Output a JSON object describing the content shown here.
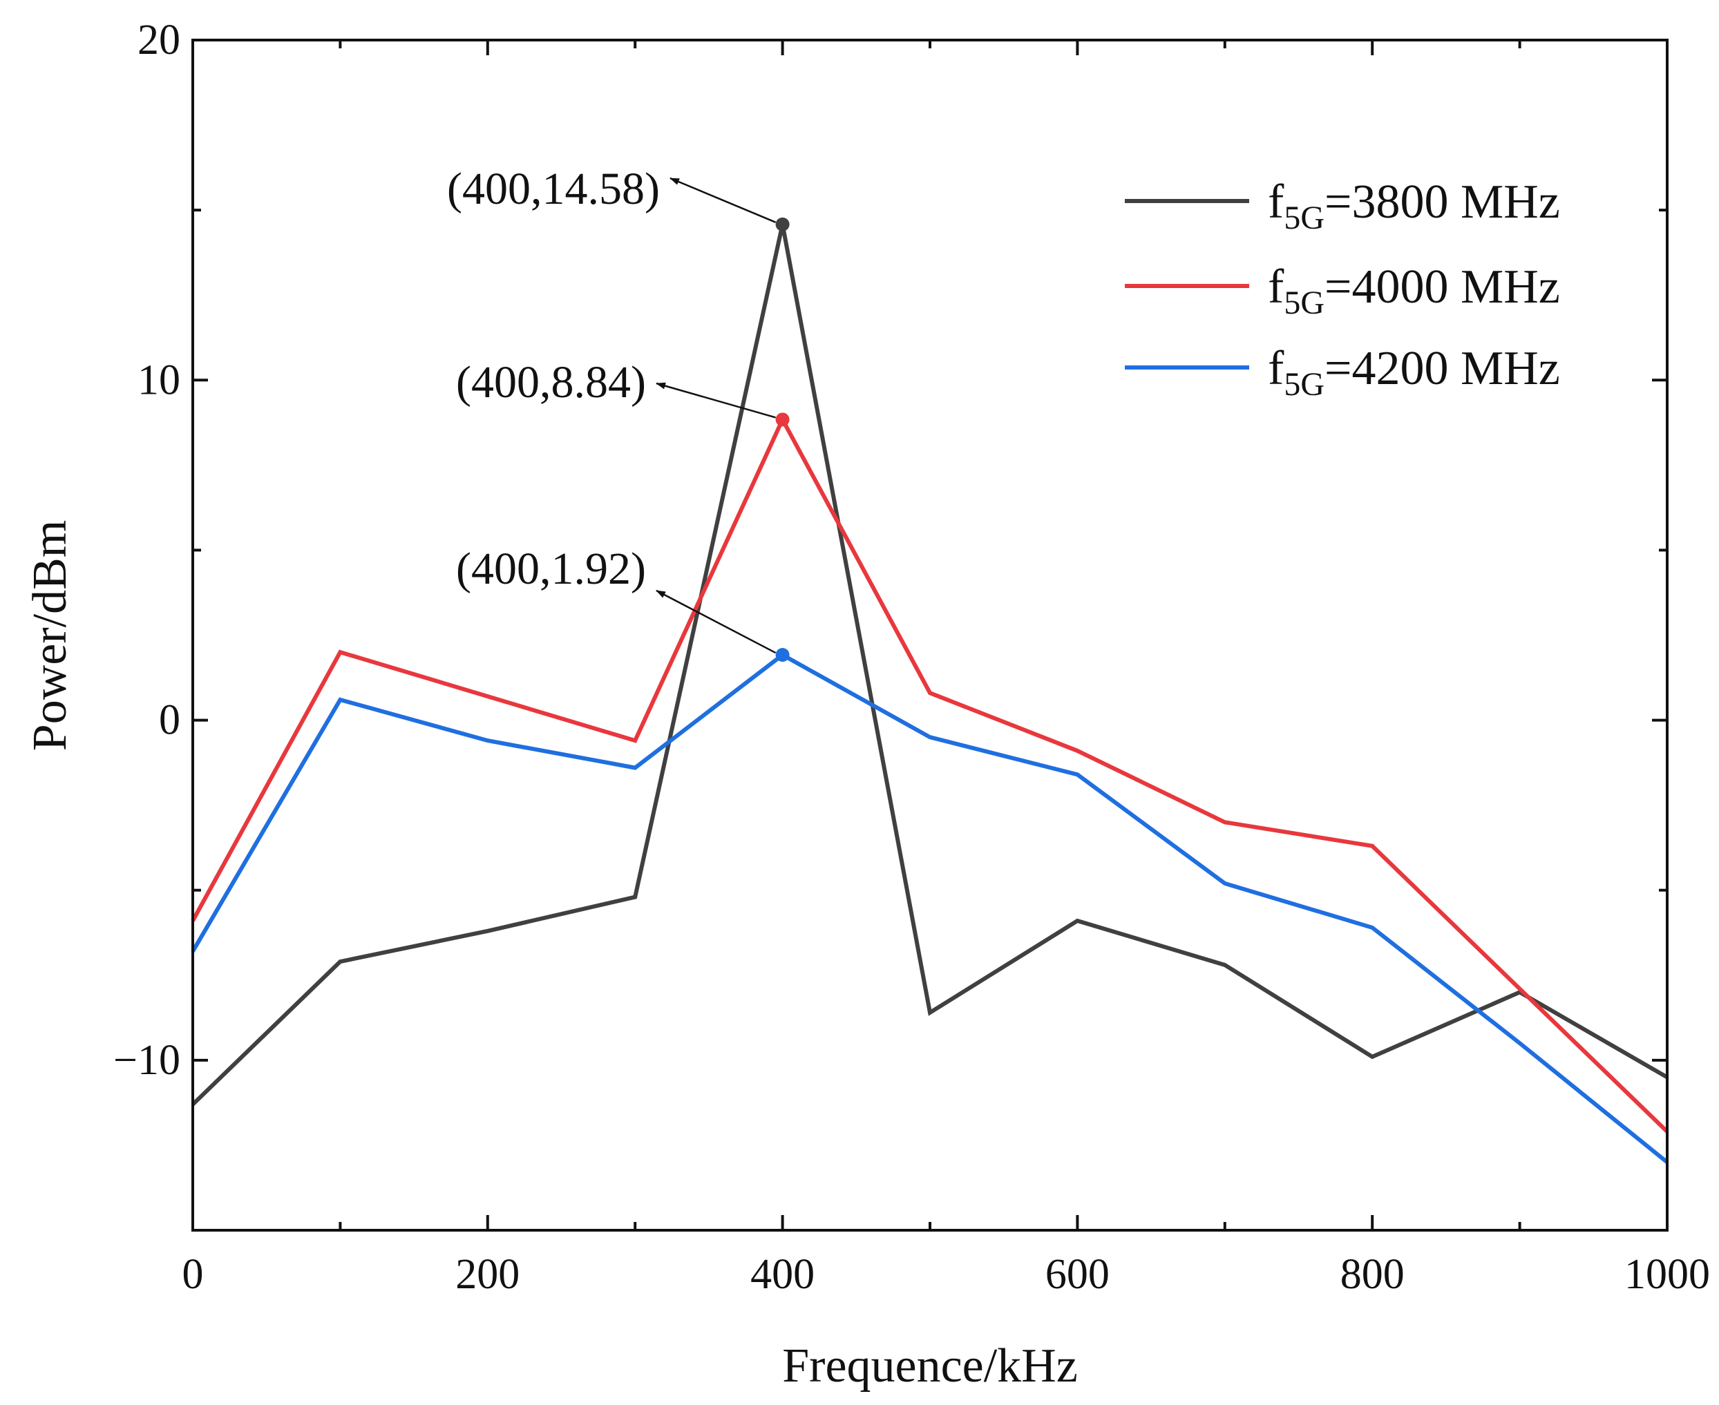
{
  "chart_data": {
    "type": "line",
    "title": "",
    "xlabel": "Frequence/kHz",
    "ylabel": "Power/dBm",
    "xlim": [
      0,
      1000
    ],
    "ylim": [
      -15,
      20
    ],
    "x_ticks": [
      0,
      200,
      400,
      600,
      800,
      1000
    ],
    "x_tick_labels": [
      "0",
      "200",
      "400",
      "600",
      "800",
      "1000"
    ],
    "y_ticks": [
      -10,
      0,
      10,
      20
    ],
    "y_tick_labels": [
      "−10",
      "0",
      "10",
      "20"
    ],
    "grid": false,
    "legend_position": "top-right",
    "x": [
      0,
      100,
      200,
      300,
      400,
      500,
      600,
      700,
      800,
      900,
      1000
    ],
    "series": [
      {
        "name": "f5G=3800 MHz",
        "label_main": "f",
        "label_sub": "5G",
        "label_rest": "=3800 MHz",
        "color": "#404040",
        "values": [
          -11.3,
          -7.1,
          -6.2,
          -5.2,
          14.58,
          -8.6,
          -5.9,
          -7.2,
          -9.9,
          -8.0,
          -10.5
        ]
      },
      {
        "name": "f5G=4000 MHz",
        "label_main": "f",
        "label_sub": "5G",
        "label_rest": "=4000 MHz",
        "color": "#e8383d",
        "values": [
          -5.9,
          2.0,
          0.7,
          -0.6,
          8.84,
          0.8,
          -0.9,
          -3.0,
          -3.7,
          -7.9,
          -12.1
        ]
      },
      {
        "name": "f5G=4200 MHz",
        "label_main": "f",
        "label_sub": "5G",
        "label_rest": "=4200 MHz",
        "color": "#1f6fe0",
        "values": [
          -6.8,
          0.6,
          -0.6,
          -1.4,
          1.92,
          -0.5,
          -1.6,
          -4.8,
          -6.1,
          -9.5,
          -13.0
        ]
      }
    ],
    "annotations": [
      {
        "text": "(400,14.58)",
        "x": 400,
        "y": 14.58,
        "color": "#404040"
      },
      {
        "text": "(400,8.84)",
        "x": 400,
        "y": 8.84,
        "color": "#e8383d"
      },
      {
        "text": "(400,1.92)",
        "x": 400,
        "y": 1.92,
        "color": "#1f6fe0"
      }
    ]
  }
}
